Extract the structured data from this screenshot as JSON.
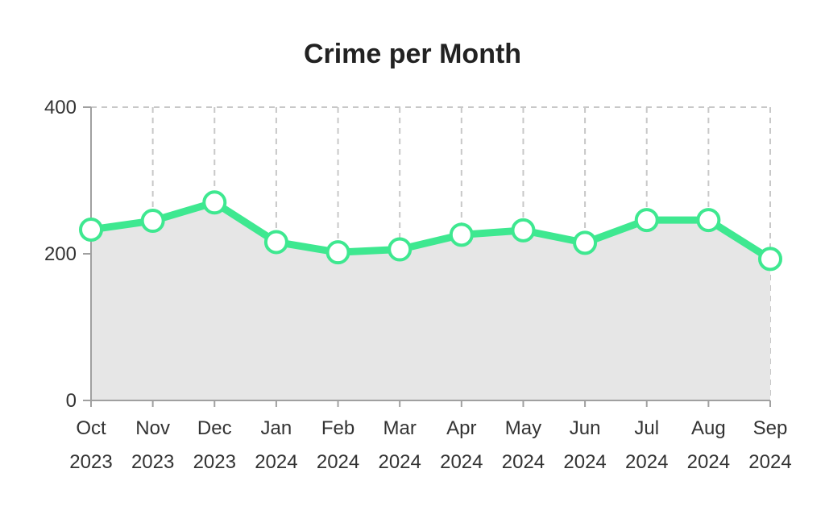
{
  "colors": {
    "line": "#3ee890",
    "area": "#e6e6e6",
    "grid": "#c8c8c8",
    "axis": "#a0a0a0",
    "marker_fill": "#ffffff"
  },
  "chart_data": {
    "type": "area",
    "title": "Crime per Month",
    "xlabel": "",
    "ylabel": "",
    "categories": [
      [
        "Oct",
        "2023"
      ],
      [
        "Nov",
        "2023"
      ],
      [
        "Dec",
        "2023"
      ],
      [
        "Jan",
        "2024"
      ],
      [
        "Feb",
        "2024"
      ],
      [
        "Mar",
        "2024"
      ],
      [
        "Apr",
        "2024"
      ],
      [
        "May",
        "2024"
      ],
      [
        "Jun",
        "2024"
      ],
      [
        "Jul",
        "2024"
      ],
      [
        "Aug",
        "2024"
      ],
      [
        "Sep",
        "2024"
      ]
    ],
    "series": [
      {
        "values": [
          233,
          245,
          270,
          216,
          202,
          206,
          226,
          232,
          215,
          246,
          246,
          193
        ]
      }
    ],
    "ylim": [
      0,
      400
    ],
    "yticks": [
      0,
      200,
      400
    ],
    "grid": true,
    "legend": "none"
  }
}
